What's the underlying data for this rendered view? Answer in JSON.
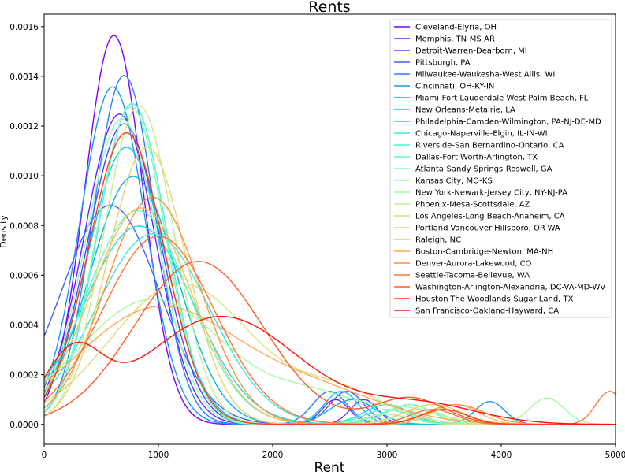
{
  "chart_data": {
    "type": "line",
    "title": "Rents",
    "xlabel": "Rent",
    "ylabel": "Density",
    "xlim": [
      0,
      5000
    ],
    "ylim": [
      -8e-05,
      0.00165
    ],
    "xticks": [
      0,
      1000,
      2000,
      3000,
      4000,
      5000
    ],
    "yticks": [
      "0.0000",
      "0.0002",
      "0.0004",
      "0.0006",
      "0.0008",
      "0.0010",
      "0.0012",
      "0.0014",
      "0.0016"
    ],
    "grid": false,
    "legend_position": "upper right",
    "series": [
      {
        "name": "Cleveland-Elyria, OH",
        "color": "#8000ff",
        "components": [
          {
            "w": 1.0,
            "mu": 610,
            "sd": 255
          }
        ]
      },
      {
        "name": "Memphis, TN-MS-AR",
        "color": "#6c1fff",
        "components": [
          {
            "w": 0.97,
            "mu": 660,
            "sd": 310
          },
          {
            "w": 0.03,
            "mu": 2550,
            "sd": 120
          }
        ]
      },
      {
        "name": "Detroit-Warren-Dearborn, MI",
        "color": "#5640fd",
        "components": [
          {
            "w": 0.97,
            "mu": 700,
            "sd": 320
          },
          {
            "w": 0.03,
            "mu": 2800,
            "sd": 120
          }
        ]
      },
      {
        "name": "Pittsburgh, PA",
        "color": "#425ffb",
        "components": [
          {
            "w": 0.95,
            "mu": 580,
            "sd": 430
          },
          {
            "w": 0.05,
            "mu": 2650,
            "sd": 150
          }
        ]
      },
      {
        "name": "Milwaukee-Waukesha-West Allis, WI",
        "color": "#2c7ef7",
        "components": [
          {
            "w": 0.95,
            "mu": 700,
            "sd": 270
          },
          {
            "w": 0.05,
            "mu": 2500,
            "sd": 150
          }
        ]
      },
      {
        "name": "Cincinnati, OH-KY-IN",
        "color": "#1898f2",
        "components": [
          {
            "w": 0.97,
            "mu": 600,
            "sd": 285
          },
          {
            "w": 0.03,
            "mu": 3900,
            "sd": 130
          }
        ]
      },
      {
        "name": "Miami-Fort Lauderdale-West Palm Beach, FL",
        "color": "#04b3ea",
        "components": [
          {
            "w": 0.95,
            "mu": 780,
            "sd": 380
          },
          {
            "w": 0.05,
            "mu": 2700,
            "sd": 200
          }
        ]
      },
      {
        "name": "New Orleans-Metairie, LA",
        "color": "#10c8e6",
        "components": [
          {
            "w": 0.95,
            "mu": 720,
            "sd": 340
          },
          {
            "w": 0.05,
            "mu": 2600,
            "sd": 150
          }
        ]
      },
      {
        "name": "Philadelphia-Camden-Wilmington, PA-NJ-DE-MD",
        "color": "#26d9e0",
        "components": [
          {
            "w": 0.96,
            "mu": 830,
            "sd": 480
          },
          {
            "w": 0.04,
            "mu": 3000,
            "sd": 200
          }
        ]
      },
      {
        "name": "Chicago-Naperville-Elgin, IL-IN-WI",
        "color": "#3ae8d9",
        "components": [
          {
            "w": 0.96,
            "mu": 950,
            "sd": 500
          },
          {
            "w": 0.04,
            "mu": 3200,
            "sd": 200
          }
        ]
      },
      {
        "name": "Riverside-San Bernardino-Ontario, CA",
        "color": "#4ef2d1",
        "components": [
          {
            "w": 0.97,
            "mu": 770,
            "sd": 300
          },
          {
            "w": 0.03,
            "mu": 3000,
            "sd": 200
          }
        ]
      },
      {
        "name": "Dallas-Fort Worth-Arlington, TX",
        "color": "#62f9c8",
        "components": [
          {
            "w": 0.97,
            "mu": 820,
            "sd": 450
          },
          {
            "w": 0.03,
            "mu": 3100,
            "sd": 200
          }
        ]
      },
      {
        "name": "Atlanta-Sandy Springs-Roswell, GA",
        "color": "#7cfcba",
        "components": [
          {
            "w": 0.96,
            "mu": 760,
            "sd": 300
          },
          {
            "w": 0.04,
            "mu": 3200,
            "sd": 200
          }
        ]
      },
      {
        "name": "Kansas City, MO-KS",
        "color": "#8efeae",
        "components": [
          {
            "w": 0.97,
            "mu": 680,
            "sd": 315
          },
          {
            "w": 0.03,
            "mu": 3300,
            "sd": 200
          }
        ]
      },
      {
        "name": "New York-Newark-Jersey City, NY-NJ-PA",
        "color": "#a6f9a0",
        "components": [
          {
            "w": 0.82,
            "mu": 950,
            "sd": 650
          },
          {
            "w": 0.1,
            "mu": 2400,
            "sd": 400
          },
          {
            "w": 0.04,
            "mu": 4400,
            "sd": 150
          },
          {
            "w": 0.04,
            "mu": 3200,
            "sd": 300
          }
        ]
      },
      {
        "name": "Phoenix-Mesa-Scottsdale, AZ",
        "color": "#c2ee8e",
        "components": [
          {
            "w": 0.98,
            "mu": 830,
            "sd": 305
          },
          {
            "w": 0.02,
            "mu": 3000,
            "sd": 200
          }
        ]
      },
      {
        "name": "Los Angeles-Long Beach-Anaheim, CA",
        "color": "#d6e180",
        "components": [
          {
            "w": 0.88,
            "mu": 1200,
            "sd": 620
          },
          {
            "w": 0.12,
            "mu": 2600,
            "sd": 400
          }
        ]
      },
      {
        "name": "Portland-Vancouver-Hillsboro, OR-WA",
        "color": "#ead172",
        "components": [
          {
            "w": 0.95,
            "mu": 900,
            "sd": 340
          },
          {
            "w": 0.05,
            "mu": 3400,
            "sd": 250
          }
        ]
      },
      {
        "name": "Raleigh, NC",
        "color": "#fabe62",
        "components": [
          {
            "w": 0.96,
            "mu": 850,
            "sd": 440
          },
          {
            "w": 0.04,
            "mu": 3600,
            "sd": 200
          }
        ]
      },
      {
        "name": "Boston-Cambridge-Newton, MA-NH",
        "color": "#ffa954",
        "components": [
          {
            "w": 0.82,
            "mu": 1000,
            "sd": 700
          },
          {
            "w": 0.18,
            "mu": 2400,
            "sd": 600
          }
        ]
      },
      {
        "name": "Denver-Aurora-Lakewood, CO",
        "color": "#ff9143",
        "components": [
          {
            "w": 0.95,
            "mu": 950,
            "sd": 415
          },
          {
            "w": 0.05,
            "mu": 3600,
            "sd": 250
          }
        ]
      },
      {
        "name": "Seattle-Tacoma-Bellevue, WA",
        "color": "#ff7434",
        "components": [
          {
            "w": 0.93,
            "mu": 1000,
            "sd": 490
          },
          {
            "w": 0.04,
            "mu": 4950,
            "sd": 120
          },
          {
            "w": 0.03,
            "mu": 3400,
            "sd": 200
          }
        ]
      },
      {
        "name": "Washington-Arlington-Alexandria, DC-VA-MD-WV",
        "color": "#ff5a26",
        "components": [
          {
            "w": 0.92,
            "mu": 1350,
            "sd": 560
          },
          {
            "w": 0.08,
            "mu": 3200,
            "sd": 300
          }
        ]
      },
      {
        "name": "Houston-The Woodlands-Sugar Land, TX",
        "color": "#ff3c16",
        "components": [
          {
            "w": 0.97,
            "mu": 720,
            "sd": 330
          },
          {
            "w": 0.03,
            "mu": 3500,
            "sd": 200
          }
        ]
      },
      {
        "name": "San Francisco-Oakland-Hayward, CA",
        "color": "#ff1508",
        "components": [
          {
            "w": 0.74,
            "mu": 1550,
            "sd": 680
          },
          {
            "w": 0.16,
            "mu": 250,
            "sd": 250
          },
          {
            "w": 0.1,
            "mu": 3300,
            "sd": 500
          }
        ]
      }
    ]
  }
}
